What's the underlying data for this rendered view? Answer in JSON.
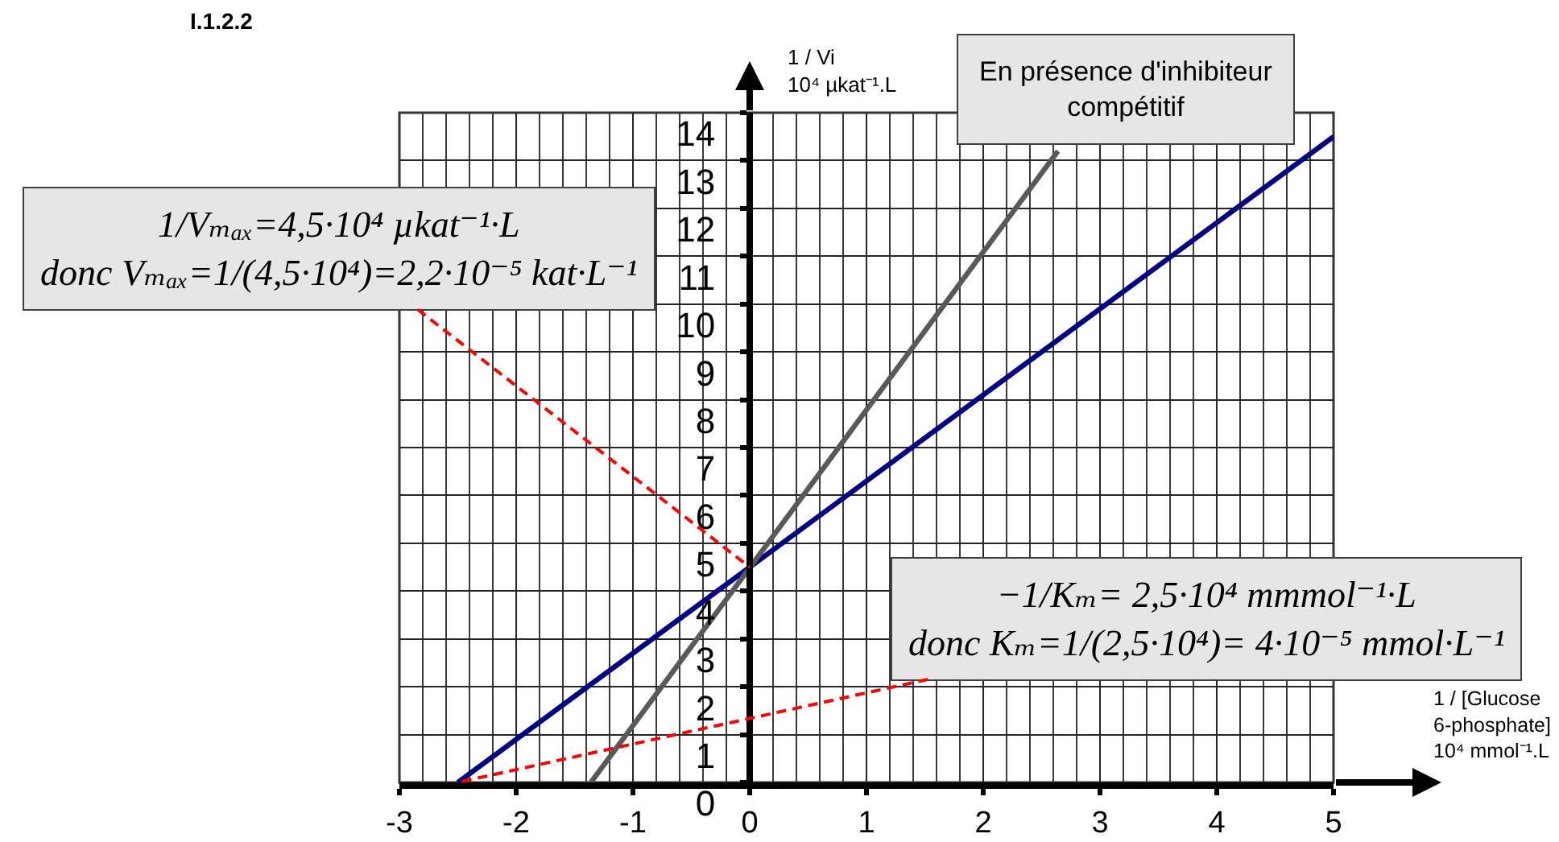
{
  "chart_data": {
    "type": "line",
    "title": "I.1.2.2",
    "xlabel": "1 / [Glucose 6-phosphate]\n10⁴ mmol⁻¹.L",
    "ylabel": "1 / Vi\n10⁴ µkat⁻¹.L",
    "xlim": [
      -3,
      5
    ],
    "ylim": [
      0,
      14
    ],
    "xticks": [
      -3,
      {
        "value": -2.8,
        "label": null
      },
      {
        "value": -2.6,
        "label": null
      },
      {
        "value": -2.4,
        "label": null
      },
      {
        "value": -2.2,
        "label": null
      },
      -2,
      {
        "value": -1.8,
        "label": null
      },
      {
        "value": -1.6,
        "label": null
      },
      {
        "value": -1.4,
        "label": null
      },
      {
        "value": -1.2,
        "label": null
      },
      -1,
      {
        "value": -0.8,
        "label": null
      },
      {
        "value": -0.6,
        "label": null
      },
      {
        "value": -0.4,
        "label": null
      },
      {
        "value": -0.2,
        "label": null
      },
      0,
      {
        "value": 0.2,
        "label": null
      },
      {
        "value": 0.4,
        "label": null
      },
      {
        "value": 0.6,
        "label": null
      },
      {
        "value": 0.8,
        "label": null
      },
      1,
      {
        "value": 1.2,
        "label": null
      },
      {
        "value": 1.4,
        "label": null
      },
      {
        "value": 1.6,
        "label": null
      },
      {
        "value": 1.8,
        "label": null
      },
      2,
      {
        "value": 2.2,
        "label": null
      },
      {
        "value": 2.4,
        "label": null
      },
      {
        "value": 2.6,
        "label": null
      },
      {
        "value": 2.8,
        "label": null
      },
      3,
      {
        "value": 3.2,
        "label": null
      },
      {
        "value": 3.4,
        "label": null
      },
      {
        "value": 3.6,
        "label": null
      },
      {
        "value": 3.8,
        "label": null
      },
      4,
      {
        "value": 4.2,
        "label": null
      },
      {
        "value": 4.4,
        "label": null
      },
      {
        "value": 4.6,
        "label": null
      },
      {
        "value": 4.8,
        "label": null
      },
      5
    ],
    "yticks": [
      0,
      1,
      2,
      3,
      4,
      5,
      6,
      7,
      8,
      9,
      10,
      11,
      12,
      13,
      14
    ],
    "grid": true,
    "legend": false,
    "marker": "none",
    "line_style": "solid",
    "series": [
      {
        "color": "#000080",
        "x": [
          -2.5,
          5
        ],
        "values": [
          0,
          13.5
        ]
      },
      {
        "name": "En présence d'inhibiteur compétitif",
        "color": "#595959",
        "x": [
          -1.36,
          2.64
        ],
        "values": [
          0,
          13.2
        ]
      }
    ],
    "annotations": [
      {
        "text": "1/Vₘₐₓ=4,5·10⁴ µkat⁻¹·L\ndonc Vₘₐₓ=1/(4,5·10⁴)=2,2·10⁻⁵ kat·L⁻¹",
        "x": 0,
        "y": 4.5
      },
      {
        "text": "−1/Kₘ= 2,5·10⁴ mmmol⁻¹·L\ndonc Kₘ=1/(2,5·10⁴)= 4·10⁻⁵ mmol·L⁻¹",
        "x": -2.5,
        "y": 0
      }
    ]
  }
}
